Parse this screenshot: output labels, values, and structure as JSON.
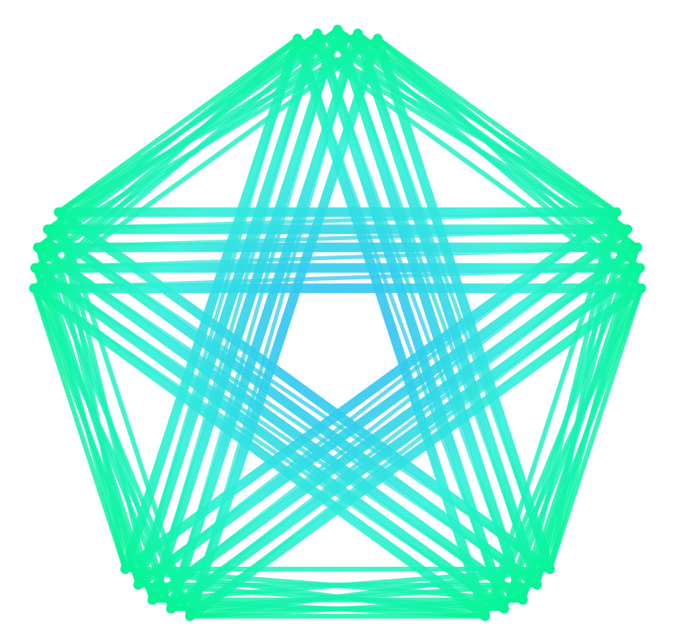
{
  "figure": {
    "description_free": true,
    "shape": "pentagon-star-string-art",
    "colors": {
      "outer": "#00f58a",
      "mid": "#2ff0d8",
      "inner": "#33b4fb",
      "background": "#ffffff"
    },
    "vertex_count": 5,
    "strands_per_vertex": 5
  }
}
